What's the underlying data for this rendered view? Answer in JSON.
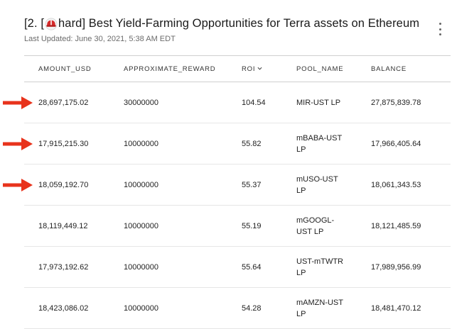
{
  "header": {
    "title_prefix": "[2. [",
    "title_suffix": "hard] Best Yield-Farming Opportunities for Terra assets on Ethereum",
    "last_updated": "Last Updated: June 30, 2021, 5:38 AM EDT"
  },
  "icons": {
    "helmet": "red-helmet-icon",
    "menu": "kebab-menu-icon",
    "sort": "chevron-down-icon",
    "arrow": "red-arrow-icon"
  },
  "colors": {
    "arrow": "#e8331c",
    "helmet": "#d62b2b"
  },
  "table": {
    "columns": [
      "AMOUNT_USD",
      "APPROXIMATE_REWARD",
      "ROI",
      "POOL_NAME",
      "BALANCE"
    ],
    "sorted_column": "ROI",
    "rows": [
      {
        "amount_usd": "28,697,175.02",
        "approximate_reward": "30000000",
        "roi": "104.54",
        "pool_name": "MIR-UST LP",
        "balance": "27,875,839.78",
        "highlighted": true
      },
      {
        "amount_usd": "17,915,215.30",
        "approximate_reward": "10000000",
        "roi": "55.82",
        "pool_name": "mBABA-UST LP",
        "balance": "17,966,405.64",
        "highlighted": true
      },
      {
        "amount_usd": "18,059,192.70",
        "approximate_reward": "10000000",
        "roi": "55.37",
        "pool_name": "mUSO-UST LP",
        "balance": "18,061,343.53",
        "highlighted": true
      },
      {
        "amount_usd": "18,119,449.12",
        "approximate_reward": "10000000",
        "roi": "55.19",
        "pool_name": "mGOOGL-UST LP",
        "balance": "18,121,485.59",
        "highlighted": false
      },
      {
        "amount_usd": "17,973,192.62",
        "approximate_reward": "10000000",
        "roi": "55.64",
        "pool_name": "UST-mTWTR LP",
        "balance": "17,989,956.99",
        "highlighted": false
      },
      {
        "amount_usd": "18,423,086.02",
        "approximate_reward": "10000000",
        "roi": "54.28",
        "pool_name": "mAMZN-UST LP",
        "balance": "18,481,470.12",
        "highlighted": false
      }
    ]
  }
}
